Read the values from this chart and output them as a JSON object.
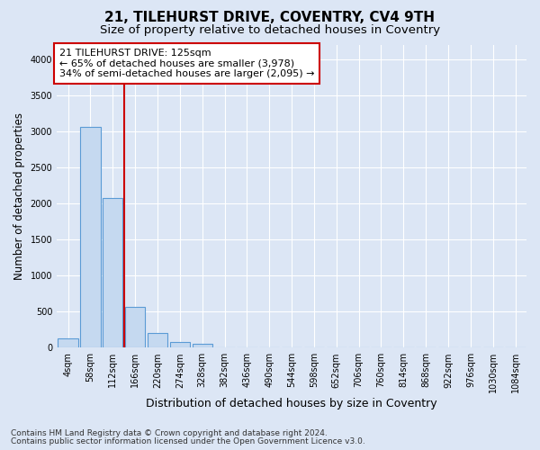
{
  "title1": "21, TILEHURST DRIVE, COVENTRY, CV4 9TH",
  "title2": "Size of property relative to detached houses in Coventry",
  "xlabel": "Distribution of detached houses by size in Coventry",
  "ylabel": "Number of detached properties",
  "bin_labels": [
    "4sqm",
    "58sqm",
    "112sqm",
    "166sqm",
    "220sqm",
    "274sqm",
    "328sqm",
    "382sqm",
    "436sqm",
    "490sqm",
    "544sqm",
    "598sqm",
    "652sqm",
    "706sqm",
    "760sqm",
    "814sqm",
    "868sqm",
    "922sqm",
    "976sqm",
    "1030sqm",
    "1084sqm"
  ],
  "bar_values": [
    130,
    3060,
    2080,
    570,
    210,
    80,
    50,
    0,
    0,
    0,
    0,
    0,
    0,
    0,
    0,
    0,
    0,
    0,
    0,
    0,
    0
  ],
  "bar_color": "#c5d9f0",
  "bar_edgecolor": "#5b9bd5",
  "bar_linewidth": 0.8,
  "vline_x": 2.5,
  "vline_color": "#cc0000",
  "annotation_text": "21 TILEHURST DRIVE: 125sqm\n← 65% of detached houses are smaller (3,978)\n34% of semi-detached houses are larger (2,095) →",
  "ylim": [
    0,
    4200
  ],
  "yticks": [
    0,
    500,
    1000,
    1500,
    2000,
    2500,
    3000,
    3500,
    4000
  ],
  "footer1": "Contains HM Land Registry data © Crown copyright and database right 2024.",
  "footer2": "Contains public sector information licensed under the Open Government Licence v3.0.",
  "bg_color": "#dce6f5",
  "plot_bg_color": "#dce6f5",
  "grid_color": "#ffffff",
  "title_fontsize": 11,
  "subtitle_fontsize": 9.5,
  "ylabel_fontsize": 8.5,
  "xlabel_fontsize": 9,
  "tick_fontsize": 7,
  "annot_fontsize": 8,
  "footer_fontsize": 6.5
}
